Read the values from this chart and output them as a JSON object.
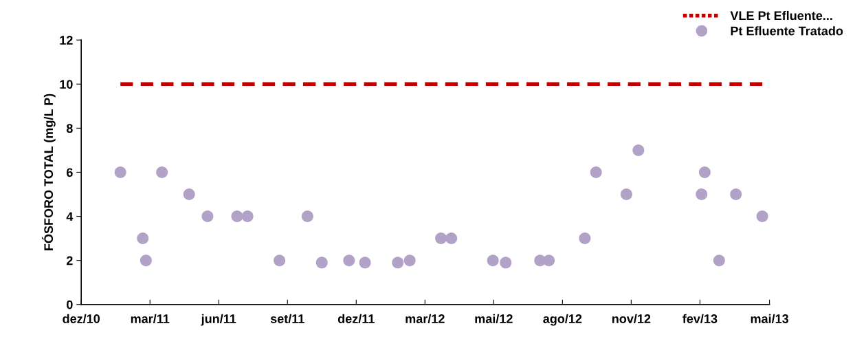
{
  "chart_data": {
    "type": "scatter",
    "ylabel": "FÓSFORO TOTAL (mg/L P)",
    "xlim": [
      "2010-12-31",
      "2013-05-10"
    ],
    "xticks": [
      {
        "value": "2010-12-31",
        "label": "dez/10"
      },
      {
        "value": "2011-03-27",
        "label": "mar/11"
      },
      {
        "value": "2011-06-21",
        "label": "jun/11"
      },
      {
        "value": "2011-09-15",
        "label": "set/11"
      },
      {
        "value": "2011-12-10",
        "label": "dez/11"
      },
      {
        "value": "2012-03-05",
        "label": "mar/12"
      },
      {
        "value": "2012-05-30",
        "label": "mai/12"
      },
      {
        "value": "2012-08-24",
        "label": "ago/12"
      },
      {
        "value": "2012-11-18",
        "label": "nov/12"
      },
      {
        "value": "2013-02-12",
        "label": "fev/13"
      },
      {
        "value": "2013-05-10",
        "label": "mai/13"
      }
    ],
    "ylim": [
      0,
      12
    ],
    "yticks": [
      0,
      2,
      4,
      6,
      8,
      10,
      12
    ],
    "grid": false,
    "legend": "top right",
    "series": [
      {
        "name": "VLE Pt Efluente...",
        "type": "line",
        "line_style": "dashed",
        "marker": "none",
        "color": "#c00000",
        "x": [
          "2011-02-18",
          "2013-05-01"
        ],
        "values": [
          10,
          10
        ]
      },
      {
        "name": "Pt Efluente Tratado",
        "marker": "circle",
        "color": "#b3a2c7",
        "x": [
          "2011-02-18",
          "2011-03-18",
          "2011-03-22",
          "2011-04-11",
          "2011-05-15",
          "2011-06-07",
          "2011-07-14",
          "2011-07-27",
          "2011-09-05",
          "2011-10-10",
          "2011-10-28",
          "2011-12-01",
          "2011-12-21",
          "2012-01-31",
          "2012-02-15",
          "2012-03-25",
          "2012-04-07",
          "2012-05-29",
          "2012-06-14",
          "2012-07-27",
          "2012-08-07",
          "2012-09-21",
          "2012-10-05",
          "2012-11-12",
          "2012-11-27",
          "2013-02-14",
          "2013-02-18",
          "2013-03-08",
          "2013-03-29",
          "2013-05-01"
        ],
        "values": [
          6,
          3,
          2,
          6,
          5,
          4,
          4,
          4,
          2,
          4,
          1.9,
          2,
          1.9,
          1.9,
          2,
          3,
          3,
          2,
          1.9,
          2,
          2,
          3,
          6,
          5,
          7,
          5,
          6,
          2,
          5,
          4
        ]
      }
    ]
  }
}
